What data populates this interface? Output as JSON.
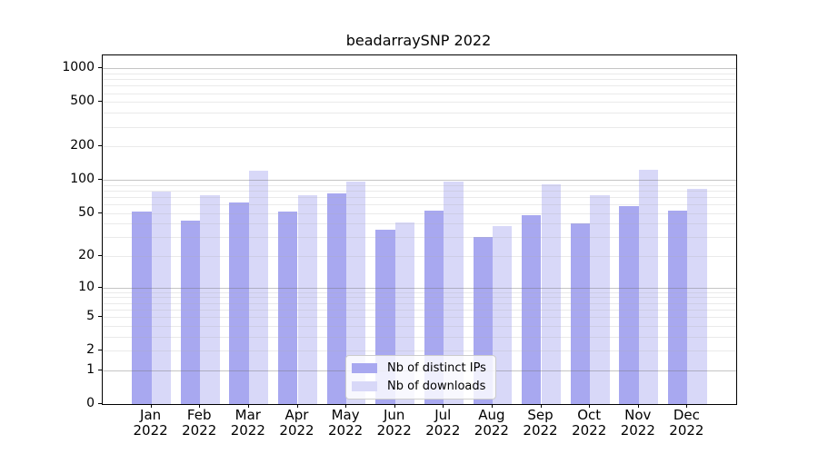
{
  "chart_data": {
    "type": "bar",
    "title": "beadarraySNP 2022",
    "categories": [
      "Jan",
      "Feb",
      "Mar",
      "Apr",
      "May",
      "Jun",
      "Jul",
      "Aug",
      "Sep",
      "Oct",
      "Nov",
      "Dec"
    ],
    "year_label": "2022",
    "series": [
      {
        "name": "Nb of distinct IPs",
        "color": "#a8a8f0",
        "values": [
          52,
          43,
          63,
          52,
          76,
          35,
          53,
          30,
          48,
          40,
          58,
          53
        ]
      },
      {
        "name": "Nb of downloads",
        "color": "#d8d8f8",
        "values": [
          79,
          73,
          121,
          72,
          96,
          41,
          96,
          38,
          91,
          73,
          124,
          83
        ]
      }
    ],
    "yscale": "log1p",
    "yticks": [
      1000,
      500,
      200,
      100,
      50,
      20,
      10,
      5,
      2,
      1,
      0
    ],
    "ylim": [
      0,
      1308
    ],
    "grid": "horizontal",
    "legend_position": "inside-bottom-center",
    "axis_color": "#000000"
  }
}
